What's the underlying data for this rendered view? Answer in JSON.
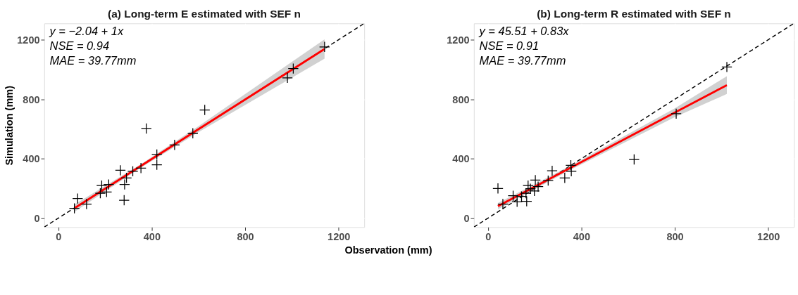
{
  "chart_data": [
    {
      "type": "scatter",
      "title": "(a) Long-term E estimated with SEF n",
      "xlabel": "Observation (mm)",
      "ylabel": "Simulation (mm)",
      "xlim": [
        -60,
        1310
      ],
      "ylim": [
        -60,
        1310
      ],
      "xticks": [
        0,
        400,
        800,
        1200
      ],
      "yticks": [
        0,
        400,
        800,
        1200
      ],
      "grid": true,
      "annotations": [
        "y = −2.04 + 1x",
        "NSE = 0.94",
        "MAE = 39.77mm"
      ],
      "series": [
        {
          "type": "line",
          "color": "#000000",
          "line_style": "dashed",
          "x": [
            -60,
            1310
          ],
          "values": [
            -60,
            1310
          ]
        },
        {
          "type": "line",
          "color": "#ff0000",
          "line_style": "solid",
          "x": [
            69,
            350,
            600,
            1140
          ],
          "values": [
            67,
            348,
            598,
            1138
          ],
          "lower": [
            42,
            336,
            578,
            1073
          ],
          "upper": [
            92,
            360,
            618,
            1203
          ]
        },
        {
          "color": "#000000",
          "marker": "cross",
          "x": [
            1140,
            1006,
            981,
            627,
            377,
            576,
            498,
            422,
            422,
            354,
            319,
            266,
            292,
            284,
            282,
            216,
            186,
            207,
            180,
            83,
            121,
            69
          ],
          "values": [
            1152,
            1006,
            944,
            728,
            603,
            571,
            493,
            429,
            359,
            337,
            315,
            322,
            271,
            227,
            121,
            227,
            220,
            176,
            168,
            132,
            95,
            66
          ]
        }
      ]
    },
    {
      "type": "scatter",
      "title": "(b) Long-term R estimated with SEF n",
      "xlim": [
        -60,
        1310
      ],
      "ylim": [
        -60,
        1310
      ],
      "xticks": [
        0,
        400,
        800,
        1200
      ],
      "yticks": [
        0,
        400,
        800,
        1200
      ],
      "grid": true,
      "annotations": [
        "y = 45.51 + 0.83x",
        "NSE = 0.91",
        "MAE = 39.77mm"
      ],
      "series": [
        {
          "type": "line",
          "color": "#000000",
          "line_style": "dashed",
          "x": [
            -60,
            1310
          ],
          "values": [
            -60,
            1310
          ]
        },
        {
          "type": "line",
          "color": "#ff0000",
          "line_style": "solid",
          "x": [
            43,
            350,
            800,
            1023
          ],
          "values": [
            81,
            336,
            710,
            895
          ],
          "lower": [
            60,
            322,
            680,
            835
          ],
          "upper": [
            102,
            350,
            739,
            955
          ]
        },
        {
          "color": "#000000",
          "marker": "cross",
          "x": [
            1023,
            806,
            626,
            43,
            355,
            357,
            329,
            275,
            258,
            203,
            215,
            199,
            172,
            163,
            166,
            144,
            125,
            108,
            64,
            182
          ],
          "values": [
            1017,
            703,
            395,
            200,
            356,
            315,
            271,
            319,
            253,
            256,
            212,
            183,
            220,
            168,
            113,
            146,
            110,
            151,
            95,
            198
          ]
        }
      ]
    }
  ]
}
